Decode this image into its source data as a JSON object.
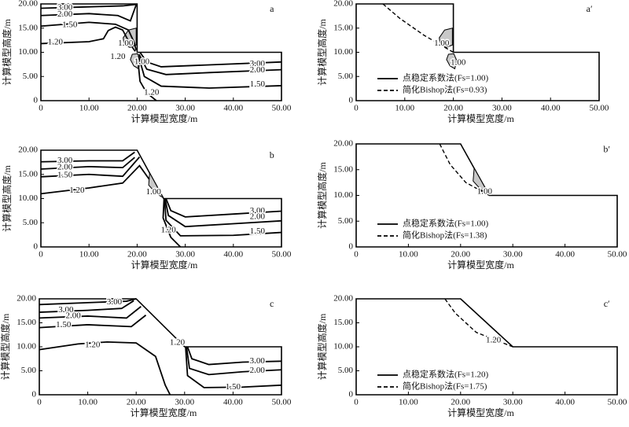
{
  "chart_data": [
    {
      "type": "contour",
      "label": "a",
      "xlabel": "计算模型宽度/m",
      "ylabel": "计算模型高度/m",
      "xlim": [
        0,
        50
      ],
      "ylim": [
        0,
        20
      ],
      "xticks": [
        0,
        {
          "value": 10,
          "label": "10.00"
        },
        {
          "value": 20,
          "label": "20.00"
        },
        {
          "value": 30,
          "label": "30.00"
        },
        {
          "value": 40,
          "label": "40.00"
        },
        {
          "value": 50,
          "label": "50.00"
        }
      ],
      "yticks": [
        0,
        {
          "value": 5,
          "label": "5.00"
        },
        {
          "value": 10,
          "label": "10.00"
        },
        {
          "value": 15,
          "label": "15.00"
        },
        {
          "value": 20,
          "label": "20.00"
        }
      ],
      "contours": {
        "values": [
          3,
          2,
          1.5,
          1.2,
          1,
          1.2,
          1,
          3,
          2,
          1.5,
          1.2
        ],
        "value_labels": [
          "3.00",
          "2.00",
          "1.50",
          "1.20",
          "1.00",
          "1.20",
          "1.00",
          "3.00",
          "2.00",
          "1.50",
          "1.20"
        ]
      }
    },
    {
      "type": "slip",
      "label": "a′",
      "xlabel": "计算模型宽度/m",
      "ylabel": "计算模型高度/m",
      "xlim": [
        0,
        50
      ],
      "ylim": [
        0,
        20
      ],
      "xticks": [
        0,
        {
          "value": 10,
          "label": "10.00"
        },
        {
          "value": 20,
          "label": "20.00"
        },
        {
          "value": 30,
          "label": "30.00"
        },
        {
          "value": 40,
          "label": "40.00"
        },
        {
          "value": 50,
          "label": "50.00"
        }
      ],
      "yticks": [
        0,
        {
          "value": 5,
          "label": "5.00"
        },
        {
          "value": 10,
          "label": "10.00"
        },
        {
          "value": 15,
          "label": "15.00"
        },
        {
          "value": 20,
          "label": "20.00"
        }
      ],
      "contours": {
        "values": [
          1,
          1
        ],
        "value_labels": [
          "1.00",
          "1.00"
        ]
      },
      "legend": [
        {
          "name": "点稳定系数法(Fs=1.00)",
          "style": "solid"
        },
        {
          "name": "简化Bishop法(Fs=0.93)",
          "style": "dashed"
        }
      ]
    },
    {
      "type": "contour",
      "label": "b",
      "xlabel": "计算模型宽度/m",
      "ylabel": "计算模型高度/m",
      "xlim": [
        0,
        50
      ],
      "ylim": [
        0,
        20
      ],
      "xticks": [
        0,
        {
          "value": 10,
          "label": "10.00"
        },
        {
          "value": 20,
          "label": "20.00"
        },
        {
          "value": 30,
          "label": "30.00"
        },
        {
          "value": 40,
          "label": "40.00"
        },
        {
          "value": 50,
          "label": "50.00"
        }
      ],
      "yticks": [
        0,
        {
          "value": 5,
          "label": "5.00"
        },
        {
          "value": 10,
          "label": "10.00"
        },
        {
          "value": 15,
          "label": "15.00"
        },
        {
          "value": 20,
          "label": "20.00"
        }
      ],
      "contours": {
        "values": [
          3,
          2,
          1.5,
          1.2,
          1,
          3,
          2,
          1.5,
          1.2
        ],
        "value_labels": [
          "3.00",
          "2.00",
          "1.50",
          "1.20",
          "1.00",
          "3.00",
          "2.00",
          "1.50",
          "1.20"
        ]
      }
    },
    {
      "type": "slip",
      "label": "b′",
      "xlabel": "计算模型宽度/m",
      "ylabel": "计算模型高度/m",
      "xlim": [
        0,
        50
      ],
      "ylim": [
        0,
        20
      ],
      "xticks": [
        0,
        {
          "value": 10,
          "label": "10.00"
        },
        {
          "value": 20,
          "label": "20.00"
        },
        {
          "value": 30,
          "label": "30.00"
        },
        {
          "value": 40,
          "label": "40.00"
        },
        {
          "value": 50,
          "label": "50.00"
        }
      ],
      "yticks": [
        0,
        {
          "value": 5,
          "label": "5.00"
        },
        {
          "value": 10,
          "label": "10.00"
        },
        {
          "value": 15,
          "label": "15.00"
        },
        {
          "value": 20,
          "label": "20.00"
        }
      ],
      "contours": {
        "values": [
          1
        ],
        "value_labels": [
          "1.00"
        ]
      },
      "legend": [
        {
          "name": "点稳定系数法(Fs=1.00)",
          "style": "solid"
        },
        {
          "name": "简化Bishop法(Fs=1.38)",
          "style": "dashed"
        }
      ]
    },
    {
      "type": "contour",
      "label": "c",
      "xlabel": "计算模型宽度/m",
      "ylabel": "计算模型高度/m",
      "xlim": [
        0,
        50
      ],
      "ylim": [
        0,
        20
      ],
      "xticks": [
        0,
        {
          "value": 10,
          "label": "10.00"
        },
        {
          "value": 20,
          "label": "20.00"
        },
        {
          "value": 30,
          "label": "30.00"
        },
        {
          "value": 40,
          "label": "40.00"
        },
        {
          "value": 50,
          "label": "50.00"
        }
      ],
      "yticks": [
        0,
        {
          "value": 5,
          "label": "5.00"
        },
        {
          "value": 10,
          "label": "10.00"
        },
        {
          "value": 15,
          "label": "15.00"
        },
        {
          "value": 20,
          "label": "20.00"
        }
      ],
      "contours": {
        "values": [
          3,
          3,
          2,
          1.5,
          1.2,
          1.2,
          3,
          2,
          1.5
        ],
        "value_labels": [
          "3.00",
          "3.00",
          "2.00",
          "1.50",
          "1.20",
          "1.20",
          "3.00",
          "2.00",
          "1.50"
        ]
      }
    },
    {
      "type": "slip",
      "label": "c′",
      "xlabel": "计算模型宽度/m",
      "ylabel": "计算模型高度/m",
      "xlim": [
        0,
        50
      ],
      "ylim": [
        0,
        20
      ],
      "xticks": [
        0,
        {
          "value": 10,
          "label": "10.00"
        },
        {
          "value": 20,
          "label": "20.00"
        },
        {
          "value": 30,
          "label": "30.00"
        },
        {
          "value": 40,
          "label": "40.00"
        },
        {
          "value": 50,
          "label": "50.00"
        }
      ],
      "yticks": [
        0,
        {
          "value": 5,
          "label": "5.00"
        },
        {
          "value": 10,
          "label": "10.00"
        },
        {
          "value": 15,
          "label": "15.00"
        },
        {
          "value": 20,
          "label": "20.00"
        }
      ],
      "contours": {
        "values": [
          1.2
        ],
        "value_labels": [
          "1.20"
        ]
      },
      "legend": [
        {
          "name": "点稳定系数法(Fs=1.20)",
          "style": "solid"
        },
        {
          "name": "简化Bishop法(Fs=1.75)",
          "style": "dashed"
        }
      ]
    }
  ]
}
